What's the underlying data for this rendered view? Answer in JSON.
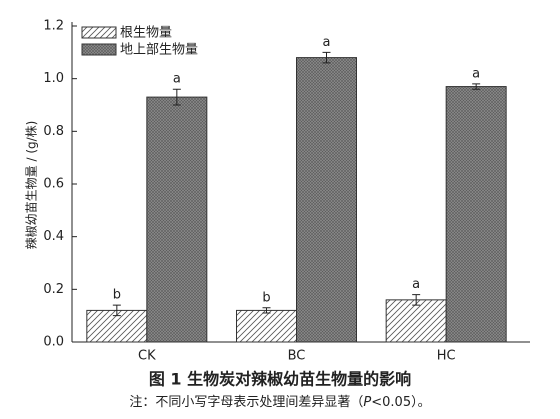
{
  "chart_data": {
    "type": "bar",
    "title": "图 1 生物炭对辣椒幼苗生物量的影响",
    "note": [
      "注：不同小写字母表示处理间差异显著（",
      "P",
      "<0.05）。"
    ],
    "y_label": "辣椒幼苗生物量 / (g/株)",
    "categories": [
      "CK",
      "BC",
      "HC"
    ],
    "series": [
      {
        "name": "根生物量",
        "color": "#ffffff",
        "hatch": "#555555",
        "values": [
          0.12,
          0.12,
          0.16
        ],
        "errors": [
          0.02,
          0.01,
          0.02
        ],
        "letters": [
          "b",
          "b",
          "a"
        ]
      },
      {
        "name": "地上部生物量",
        "color": "#8c8c8c",
        "hatch": "#5a5a5a",
        "values": [
          0.93,
          1.08,
          0.97
        ],
        "errors": [
          0.03,
          0.02,
          0.01
        ],
        "letters": [
          "a",
          "a",
          "a"
        ]
      }
    ],
    "ylim": [
      0,
      1.2
    ],
    "yticks": [
      {
        "value": 0,
        "label": "0.0"
      },
      0.2,
      0.4,
      0.6,
      0.8,
      {
        "value": 1,
        "label": "1.0"
      },
      1.2
    ],
    "legend": "top-left"
  }
}
